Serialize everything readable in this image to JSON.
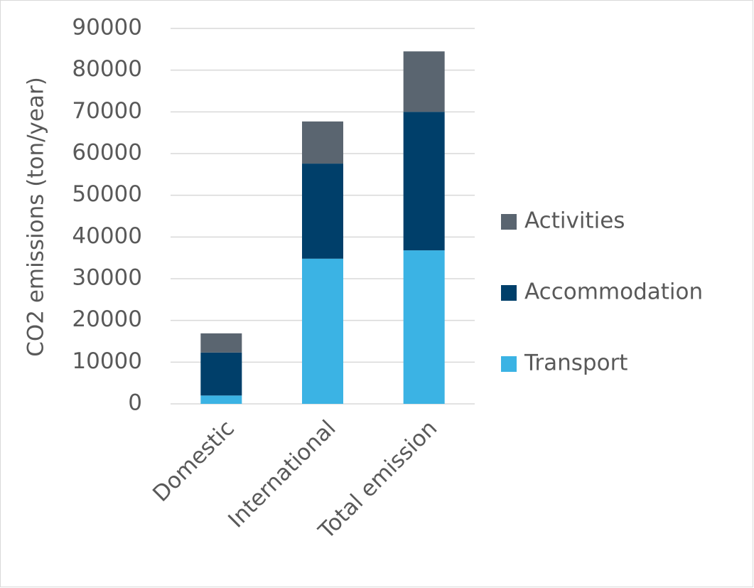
{
  "chart_data": {
    "type": "stacked_bar",
    "y_label": "CO2 emissions (ton/year)",
    "categories": [
      "Domestic",
      "International",
      "Total emission"
    ],
    "series": [
      {
        "name": "Transport",
        "color": "#3bb3e4",
        "values": [
          2000,
          34800,
          36800
        ]
      },
      {
        "name": "Accommodation",
        "color": "#003f6a",
        "values": [
          10300,
          22800,
          33200
        ]
      },
      {
        "name": "Activities",
        "color": "#5a6570",
        "values": [
          4600,
          10100,
          14500
        ]
      }
    ],
    "ylim": [
      0,
      90000
    ],
    "yticks": [
      0,
      10000,
      20000,
      30000,
      40000,
      50000,
      60000,
      70000,
      80000,
      90000
    ],
    "grid": true,
    "legend": "right"
  }
}
